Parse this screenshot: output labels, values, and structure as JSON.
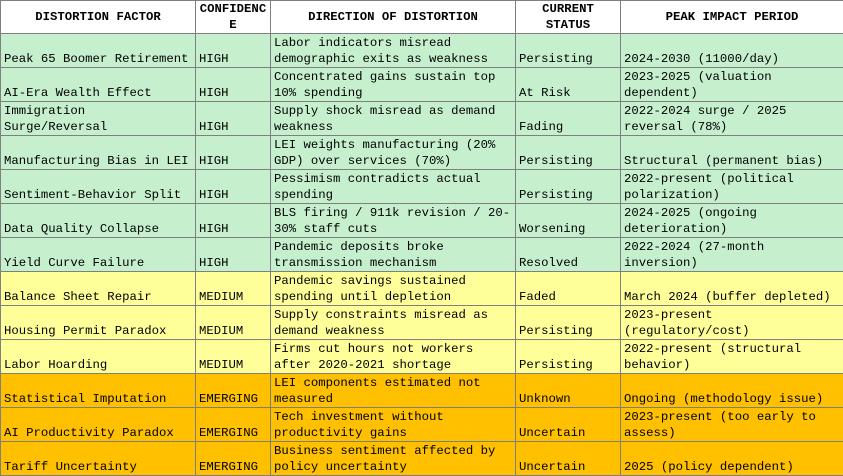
{
  "table": {
    "header": [
      "DISTORTION FACTOR",
      "CONFIDENCE",
      "DIRECTION OF DISTORTION",
      "CURRENT STATUS",
      "PEAK IMPACT PERIOD"
    ],
    "rows": [
      [
        "Peak 65 Boomer Retirement",
        "HIGH",
        "Labor indicators misread demographic exits as weakness",
        "Persisting",
        "2024-2030 (11000/day)"
      ],
      [
        "AI-Era Wealth Effect",
        "HIGH",
        "Concentrated gains sustain top 10% spending",
        "At Risk",
        "2023-2025 (valuation dependent)"
      ],
      [
        "Immigration Surge/Reversal",
        "HIGH",
        "Supply shock misread as demand weakness",
        "Fading",
        "2022-2024 surge / 2025 reversal (78%)"
      ],
      [
        "Manufacturing Bias in LEI",
        "HIGH",
        "LEI weights manufacturing (20% GDP) over services (70%)",
        "Persisting",
        "Structural (permanent bias)"
      ],
      [
        "Sentiment-Behavior Split",
        "HIGH",
        "Pessimism contradicts actual spending",
        "Persisting",
        "2022-present (political polarization)"
      ],
      [
        "Data Quality Collapse",
        "HIGH",
        "BLS firing / 911k revision / 20-30% staff cuts",
        "Worsening",
        "2024-2025 (ongoing deterioration)"
      ],
      [
        "Yield Curve Failure",
        "HIGH",
        "Pandemic deposits broke transmission mechanism",
        "Resolved",
        "2022-2024 (27-month inversion)"
      ],
      [
        "Balance Sheet Repair",
        "MEDIUM",
        "Pandemic savings sustained spending until depletion",
        "Faded",
        "March 2024 (buffer depleted)"
      ],
      [
        "Housing Permit Paradox",
        "MEDIUM",
        "Supply constraints misread as demand weakness",
        "Persisting",
        "2023-present (regulatory/cost)"
      ],
      [
        "Labor Hoarding",
        "MEDIUM",
        "Firms cut hours not workers after 2020-2021 shortage",
        "Persisting",
        "2022-present (structural behavior)"
      ],
      [
        "Statistical Imputation",
        "EMERGING",
        "LEI components estimated not measured",
        "Unknown",
        "Ongoing (methodology issue)"
      ],
      [
        "AI Productivity Paradox",
        "EMERGING",
        "Tech investment without productivity gains",
        "Uncertain",
        "2023-present (too early to assess)"
      ],
      [
        "Tariff Uncertainty",
        "EMERGING",
        "Business sentiment affected by policy uncertainty",
        "Uncertain",
        "2025 (policy dependent)"
      ]
    ]
  }
}
